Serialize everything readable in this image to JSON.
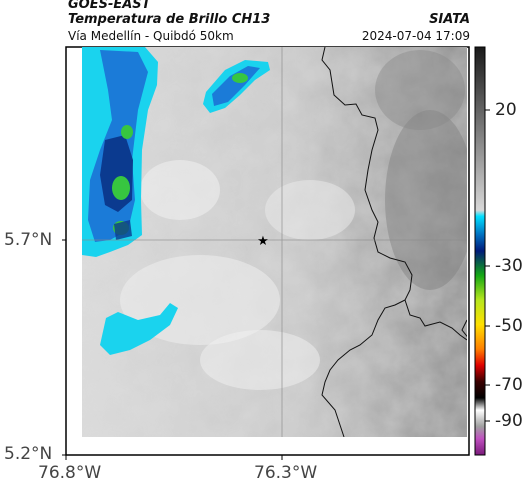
{
  "header": {
    "satellite": "GOES-EAST",
    "product": "Temperatura de Brillo CH13",
    "organization": "SIATA",
    "route": "Vía Medellín - Quibdó 50km",
    "timestamp": "2024-07-04 17:09"
  },
  "axes": {
    "lat_ticks": [
      "5.7°N",
      "5.2°N"
    ],
    "lon_ticks": [
      "76.8°W",
      "76.3°W"
    ]
  },
  "colorbar": {
    "ticks": [
      "20",
      "-30",
      "-50",
      "-70",
      "-90"
    ]
  },
  "marker": {
    "type": "star",
    "icon": "star-icon"
  },
  "colors": {
    "cloud_cyan": "#1ad3ee",
    "cloud_blue": "#1b7bd8",
    "cloud_dark": "#0b3a8f",
    "cloud_green": "#37c640"
  }
}
